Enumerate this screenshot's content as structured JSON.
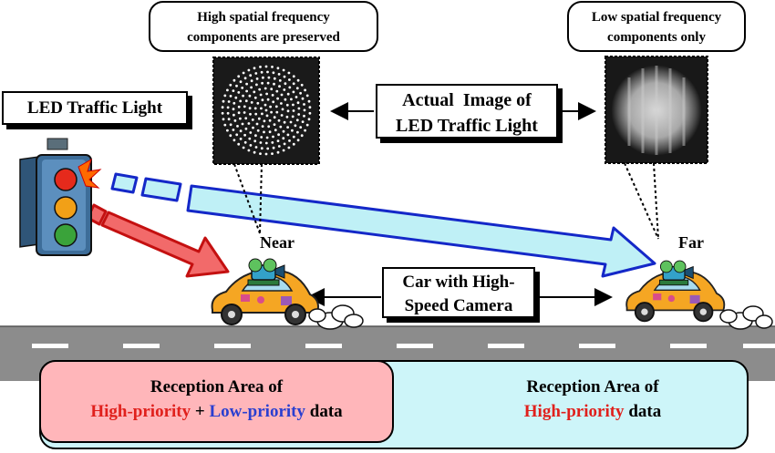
{
  "labels": {
    "led_traffic_light": "LED Traffic Light",
    "bubble_near": [
      "High spatial frequency",
      "components are preserved"
    ],
    "bubble_far": [
      "Low spatial frequency",
      "components only"
    ],
    "actual_image": [
      "Actual  Image of",
      "LED Traffic Light"
    ],
    "near": "Near",
    "far": "Far",
    "car_camera": [
      "Car with High-",
      "Speed Camera"
    ]
  },
  "reception": {
    "left_title": "Reception Area of",
    "left_high": "High-priority",
    "left_plus": " + ",
    "left_low": "Low-priority",
    "left_data": " data",
    "right_title": "Reception Area of",
    "right_high": "High-priority",
    "right_data": " data"
  },
  "colors": {
    "high_priority": "#e0201c",
    "low_priority": "#2a3fd0",
    "red_arrow_fill": "#f26a6a",
    "blue_arrow_fill": "#bff0f6",
    "road": "#8c8c8c",
    "left_zone": "#ffb6ba",
    "right_zone": "#cdf5f9"
  }
}
